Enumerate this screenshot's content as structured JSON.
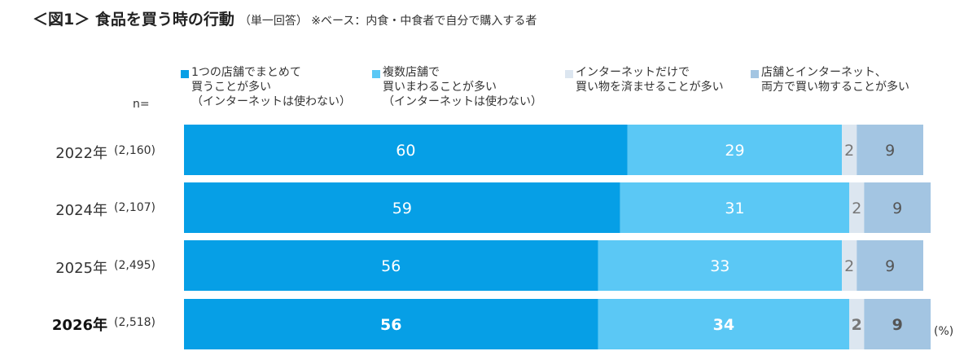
{
  "title": {
    "main": "＜図1＞ 食品を買う時の行動",
    "sub": "（単一回答） ※ベース：内食・中食者で自分で購入する者"
  },
  "n_label": "n=",
  "unit_label": "(%)",
  "legend": [
    {
      "label": "1つの店舗でまとめて\n買うことが多い\n（インターネットは使わない）",
      "color": "#069fe6"
    },
    {
      "label": "複数店舗で\n買いまわることが多い\n（インターネットは使わない）",
      "color": "#5bc8f5"
    },
    {
      "label": "インターネットだけで\n買い物を済ませることが多い",
      "color": "#dce6f0"
    },
    {
      "label": "店舗とインターネット、\n両方で買い物することが多い",
      "color": "#a3c5e2"
    }
  ],
  "rows": [
    {
      "year": "2022年",
      "n": "(2,160)"
    },
    {
      "year": "2024年",
      "n": "(2,107)"
    },
    {
      "year": "2025年",
      "n": "(2,495)"
    },
    {
      "year": "2026年",
      "n": "(2,518)"
    }
  ],
  "chart_data": {
    "type": "bar",
    "orientation": "horizontal",
    "stacked": true,
    "categories": [
      "2022年",
      "2024年",
      "2025年",
      "2026年"
    ],
    "series": [
      {
        "name": "1つの店舗でまとめて買うことが多い（インターネットは使わない）",
        "values": [
          60,
          59,
          56,
          56
        ],
        "color": "#069fe6"
      },
      {
        "name": "複数店舗で買いまわることが多い（インターネットは使わない）",
        "values": [
          29,
          31,
          33,
          34
        ],
        "color": "#5bc8f5"
      },
      {
        "name": "インターネットだけで買い物を済ませることが多い",
        "values": [
          2,
          2,
          2,
          2
        ],
        "color": "#dce6f0"
      },
      {
        "name": "店舗とインターネット、両方で買い物することが多い",
        "values": [
          9,
          9,
          9,
          9
        ],
        "color": "#a3c5e2"
      }
    ],
    "data_labels": [
      [
        "60",
        "29",
        "2",
        "9"
      ],
      [
        "59",
        "31",
        "2",
        "9"
      ],
      [
        "56",
        "33",
        "2",
        "9"
      ],
      [
        "56",
        "34",
        "2",
        "9"
      ]
    ],
    "bold_category": "2026年",
    "xlim": [
      0,
      100
    ],
    "unit": "%"
  }
}
